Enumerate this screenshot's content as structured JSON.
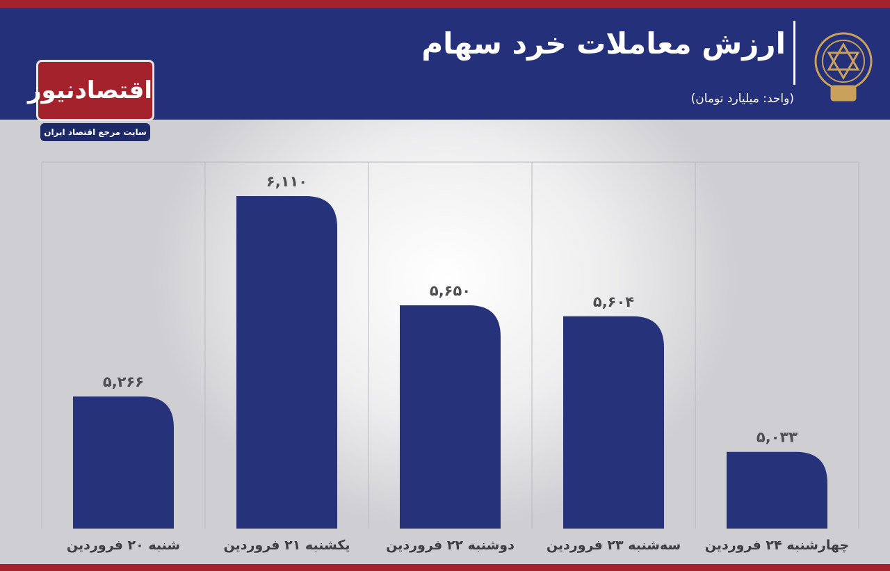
{
  "header": {
    "title": "ارزش معاملات خرد سهام",
    "subtitle": "(واحد: میلیارد تومان)",
    "brand": "اقتصادنیوز",
    "brand_tagline": "سایت مرجع اقتصاد ایران"
  },
  "chart_data": {
    "type": "bar",
    "categories": [
      "شنبه ۲۰ فروردین",
      "یکشنبه ۲۱ فروردین",
      "دوشنبه ۲۲ فروردین",
      "سه‌شنبه ۲۳ فروردین",
      "چهارشنبه ۲۴ فروردین"
    ],
    "values": [
      5266,
      6110,
      5650,
      5604,
      5033
    ],
    "value_labels": [
      "۵,۲۶۶",
      "۶,۱۱۰",
      "۵,۶۵۰",
      "۵,۶۰۴",
      "۵,۰۳۳"
    ],
    "color": "#26337a"
  }
}
